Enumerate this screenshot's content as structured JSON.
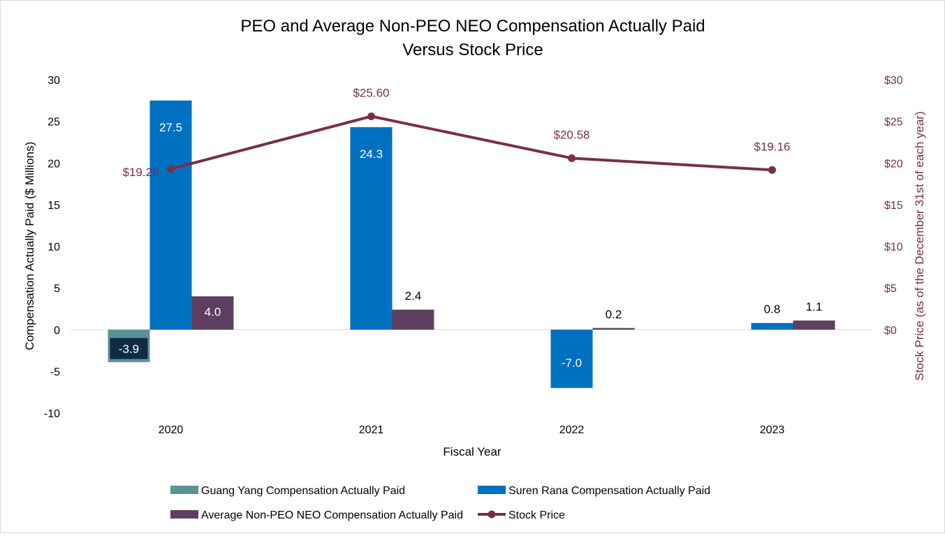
{
  "chart_data": {
    "type": "bar",
    "title_line1": "PEO and Average Non-PEO NEO Compensation Actually Paid",
    "title_line2": "Versus Stock Price",
    "xlabel": "Fiscal Year",
    "ylabel": "Compensation Actually Paid ($ Millions)",
    "ylabel_right": "Stock Price (as of the December 31st of each year)",
    "categories": [
      "2020",
      "2021",
      "2022",
      "2023"
    ],
    "ylim": [
      -10,
      30
    ],
    "yticks": [
      30,
      25,
      20,
      15,
      10,
      5,
      0,
      -5,
      -10
    ],
    "ylim_right": [
      0,
      30
    ],
    "yticks_right": [
      "$30",
      "$25",
      "$20",
      "$15",
      "$10",
      "$5",
      "$0"
    ],
    "series": [
      {
        "name": "Guang Yang Compensation Actually Paid",
        "color": "#5b9295",
        "values": [
          -3.9,
          null,
          null,
          null
        ],
        "labels": [
          "-3.9",
          "",
          "",
          ""
        ]
      },
      {
        "name": "Suren Rana Compensation Actually Paid",
        "color": "#0070c0",
        "values": [
          27.5,
          24.3,
          -7.0,
          0.8
        ],
        "labels": [
          "27.5",
          "24.3",
          "-7.0",
          "0.8"
        ]
      },
      {
        "name": "Average Non-PEO NEO Compensation Actually Paid",
        "color": "#5e3f5f",
        "values": [
          4.0,
          2.4,
          0.2,
          1.1
        ],
        "labels": [
          "4.0",
          "2.4",
          "0.2",
          "1.1"
        ]
      }
    ],
    "line_series": {
      "name": "Stock Price",
      "color": "#7a2e4a",
      "axis": "right",
      "values": [
        19.28,
        25.6,
        20.58,
        19.16
      ],
      "labels": [
        "$19.28",
        "$25.60",
        "$20.58",
        "$19.16"
      ]
    },
    "legend_position": "bottom"
  }
}
